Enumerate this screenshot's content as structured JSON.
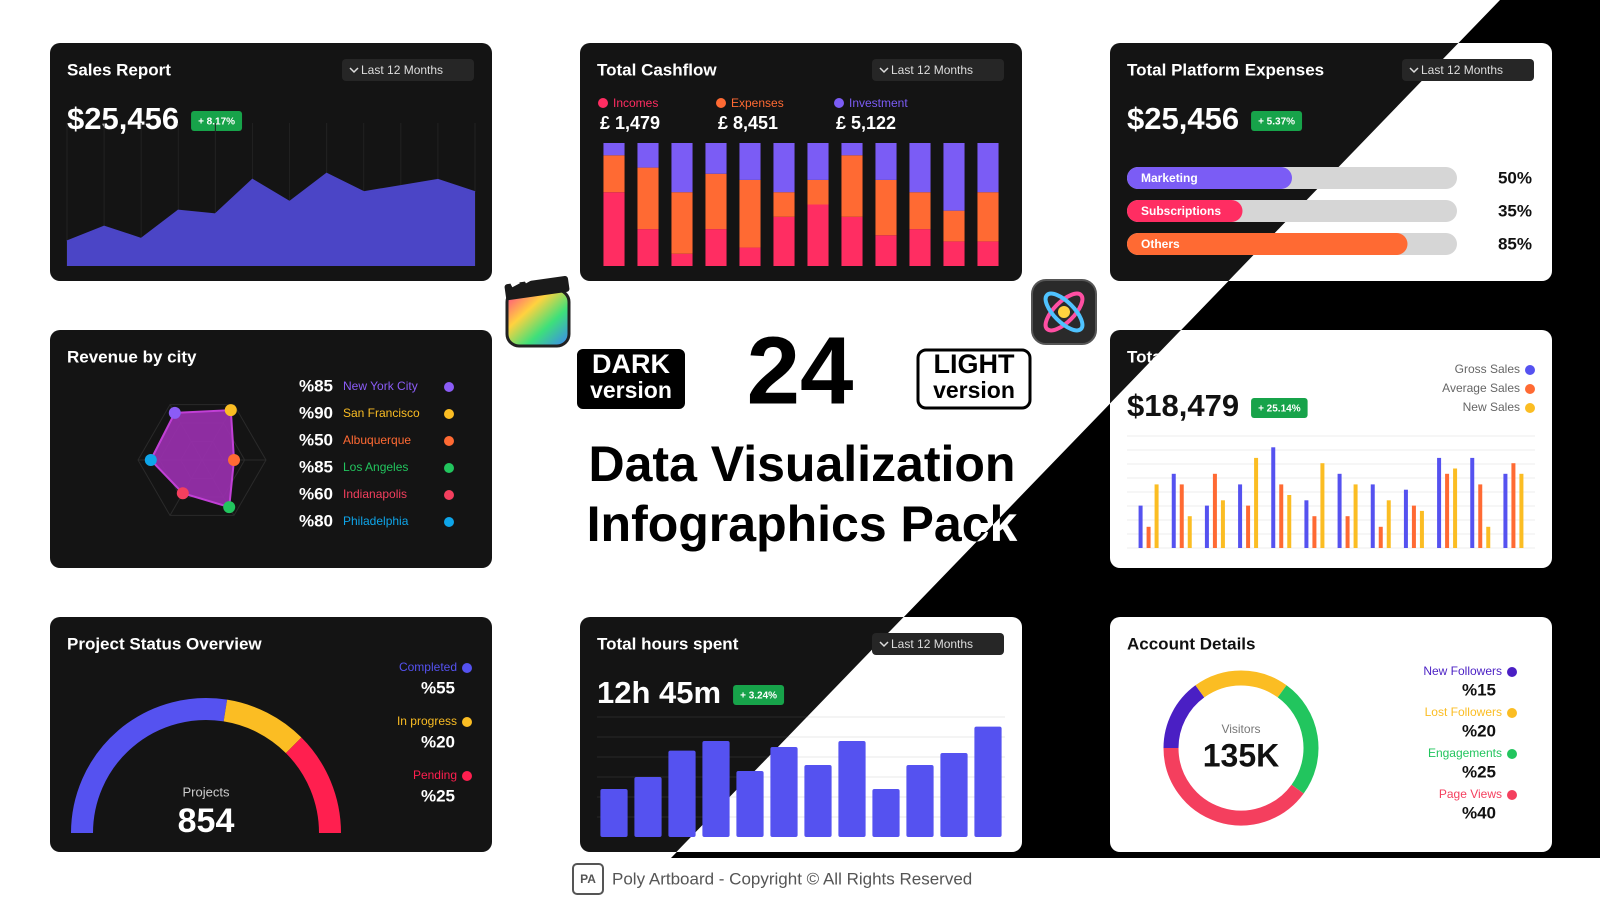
{
  "chart_data": [
    {
      "type": "area",
      "title": "Sales Report",
      "period": "Last 12 Months",
      "total": "$25,456",
      "change": "+ 8.17%",
      "color": "#4b45c6",
      "values": [
        20,
        32,
        22,
        45,
        42,
        70,
        52,
        75,
        60,
        65,
        70,
        60
      ],
      "ylim": [
        0,
        100
      ]
    },
    {
      "type": "stacked-bar",
      "title": "Total Cashflow",
      "period": "Last 12 Months",
      "series": [
        {
          "name": "Incomes",
          "total": "£ 1,479",
          "color": "#ff2d62",
          "values": [
            60,
            30,
            10,
            30,
            15,
            40,
            50,
            40,
            25,
            30,
            20,
            20
          ]
        },
        {
          "name": "Expenses",
          "total": "£ 8,451",
          "color": "#ff6a33",
          "values": [
            30,
            50,
            50,
            45,
            55,
            20,
            20,
            50,
            45,
            30,
            25,
            40
          ]
        },
        {
          "name": "Investment",
          "total": "£ 5,122",
          "color": "#7b5cf5",
          "values": [
            10,
            20,
            40,
            25,
            30,
            40,
            30,
            10,
            30,
            40,
            55,
            40
          ]
        }
      ],
      "ylim": [
        0,
        100
      ]
    },
    {
      "type": "progress",
      "title": "Total Platform Expenses",
      "period": "Last 12 Months",
      "total": "$25,456",
      "change": "+ 5.37%",
      "categories": [
        "Marketing",
        "Subscriptions",
        "Others"
      ],
      "values": [
        50,
        35,
        85
      ],
      "value_labels": [
        "50%",
        "35%",
        "85%"
      ],
      "colors": [
        "#7b5cf5",
        "#ff2d62",
        "#ff6a33"
      ],
      "xlim": [
        0,
        100
      ]
    },
    {
      "type": "radar",
      "title": "Revenue by city",
      "categories": [
        "New York City",
        "San Francisco",
        "Albuquerque",
        "Los Angeles",
        "Indianapolis",
        "Philadelphia"
      ],
      "values": [
        85,
        90,
        50,
        85,
        60,
        80
      ],
      "value_labels": [
        "%85",
        "%90",
        "%50",
        "%85",
        "%60",
        "%80"
      ],
      "colors": [
        "#8b5cf6",
        "#fbbd23",
        "#ff6a33",
        "#22c55e",
        "#f43f5e",
        "#0ea5e9"
      ],
      "rlim": [
        0,
        100
      ]
    },
    {
      "type": "grouped-bar",
      "title": "Total Sales",
      "total": "$18,479",
      "change": "+ 25.14%",
      "series": [
        {
          "name": "Gross Sales",
          "color": "#5552f0",
          "values": [
            40,
            70,
            40,
            60,
            95,
            45,
            70,
            60,
            55,
            85,
            85,
            70
          ]
        },
        {
          "name": "Average Sales",
          "color": "#ff6a33",
          "values": [
            20,
            60,
            70,
            40,
            60,
            30,
            30,
            20,
            40,
            70,
            60,
            80
          ]
        },
        {
          "name": "New Sales",
          "color": "#fbbd23",
          "values": [
            60,
            30,
            45,
            85,
            50,
            80,
            60,
            45,
            35,
            75,
            20,
            70
          ]
        }
      ],
      "ylim": [
        0,
        100
      ]
    },
    {
      "type": "gauge",
      "title": "Project Status Overview",
      "center_label": "Projects",
      "center_value": "854",
      "categories": [
        "Completed",
        "In progress",
        "Pending"
      ],
      "values": [
        55,
        20,
        25
      ],
      "value_labels": [
        "%55",
        "%20",
        "%25"
      ],
      "colors": [
        "#5552f0",
        "#fbbd23",
        "#ff1f4f"
      ]
    },
    {
      "type": "bar",
      "title": "Total hours spent",
      "period": "Last 12 Months",
      "total": "12h 45m",
      "change": "+ 3.24%",
      "color": "#5552f0",
      "values": [
        40,
        50,
        72,
        80,
        55,
        75,
        60,
        80,
        40,
        60,
        70,
        92
      ],
      "ylim": [
        0,
        100
      ]
    },
    {
      "type": "donut",
      "title": "Account Details",
      "center_label": "Visitors",
      "center_value": "135K",
      "categories": [
        "New Followers",
        "Lost Followers",
        "Engagements",
        "Page Views"
      ],
      "values": [
        15,
        20,
        25,
        40
      ],
      "value_labels": [
        "%15",
        "%20",
        "%25",
        "%40"
      ],
      "colors": [
        "#4a1fc4",
        "#fbbd23",
        "#22c55e",
        "#f43f5e"
      ]
    }
  ],
  "promo": {
    "count": "24",
    "dark": [
      "DARK",
      "version"
    ],
    "light": [
      "LIGHT",
      "version"
    ],
    "title": [
      "Data Visualization",
      "Infographics Pack"
    ]
  },
  "footer": {
    "logo": "PA",
    "text": "Poly Artboard - Copyright © All Rights Reserved"
  }
}
